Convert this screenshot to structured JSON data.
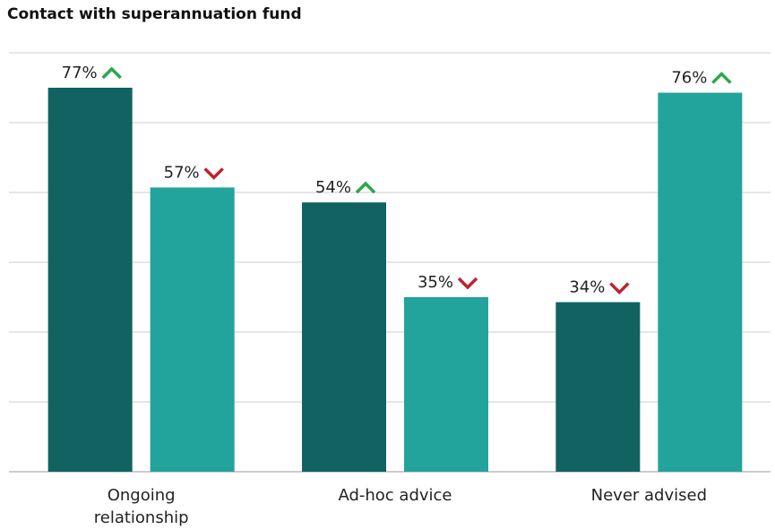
{
  "chart_data": {
    "type": "bar",
    "title": "Contact with superannuation fund",
    "categories": [
      "Ongoing relationship",
      "Ad-hoc advice",
      "Never advised"
    ],
    "series": [
      {
        "color": "#106361",
        "values": [
          77,
          54,
          34
        ],
        "value_labels": [
          "77%",
          "54%",
          "34%"
        ],
        "trend": [
          "up",
          "up",
          "down"
        ]
      },
      {
        "color": "#22a39c",
        "values": [
          57,
          35,
          76
        ],
        "value_labels": [
          "57%",
          "35%",
          "76%"
        ],
        "trend": [
          "down",
          "down",
          "up"
        ]
      }
    ],
    "trend_colors": {
      "up": "#2aa84a",
      "down": "#c0202e"
    },
    "ylim": [
      0,
      84
    ],
    "yticks": [
      0,
      14,
      28,
      42,
      56,
      70,
      84
    ],
    "grid": true
  }
}
